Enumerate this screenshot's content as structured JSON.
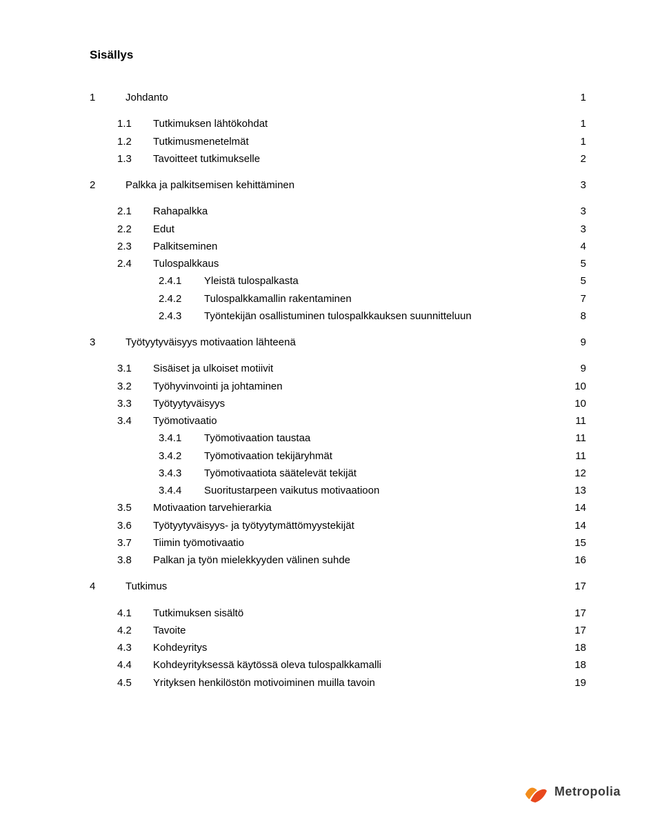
{
  "title": "Sisällys",
  "toc": [
    {
      "level": 0,
      "num": "1",
      "label": "Johdanto",
      "page": "1",
      "gap_before": "none",
      "gap_after": "md"
    },
    {
      "level": 1,
      "num": "1.1",
      "label": "Tutkimuksen lähtökohdat",
      "page": "1",
      "gap_after": "sm"
    },
    {
      "level": 1,
      "num": "1.2",
      "label": "Tutkimusmenetelmät",
      "page": "1",
      "gap_after": "sm"
    },
    {
      "level": 1,
      "num": "1.3",
      "label": "Tavoitteet tutkimukselle",
      "page": "2",
      "gap_after": "md"
    },
    {
      "level": 0,
      "num": "2",
      "label": "Palkka ja palkitsemisen kehittäminen",
      "page": "3",
      "gap_after": "md"
    },
    {
      "level": 1,
      "num": "2.1",
      "label": "Rahapalkka",
      "page": "3",
      "gap_after": "sm"
    },
    {
      "level": 1,
      "num": "2.2",
      "label": "Edut",
      "page": "3",
      "gap_after": "sm"
    },
    {
      "level": 1,
      "num": "2.3",
      "label": "Palkitseminen",
      "page": "4",
      "gap_after": "sm"
    },
    {
      "level": 1,
      "num": "2.4",
      "label": "Tulospalkkaus",
      "page": "5",
      "gap_after": "sm"
    },
    {
      "level": 2,
      "num": "2.4.1",
      "label": "Yleistä tulospalkasta",
      "page": "5",
      "gap_after": "sm"
    },
    {
      "level": 2,
      "num": "2.4.2",
      "label": "Tulospalkkamallin rakentaminen",
      "page": "7",
      "gap_after": "sm"
    },
    {
      "level": 2,
      "num": "2.4.3",
      "label": "Työntekijän osallistuminen tulospalkkauksen suunnitteluun",
      "page": "8",
      "gap_after": "md"
    },
    {
      "level": 0,
      "num": "3",
      "label": "Työtyytyväisyys motivaation lähteenä",
      "page": "9",
      "gap_after": "md"
    },
    {
      "level": 1,
      "num": "3.1",
      "label": "Sisäiset ja ulkoiset motiivit",
      "page": "9",
      "gap_after": "sm"
    },
    {
      "level": 1,
      "num": "3.2",
      "label": "Työhyvinvointi ja johtaminen",
      "page": "10",
      "gap_after": "sm"
    },
    {
      "level": 1,
      "num": "3.3",
      "label": "Työtyytyväisyys",
      "page": "10",
      "gap_after": "sm"
    },
    {
      "level": 1,
      "num": "3.4",
      "label": "Työmotivaatio",
      "page": "11",
      "gap_after": "sm"
    },
    {
      "level": 2,
      "num": "3.4.1",
      "label": "Työmotivaation taustaa",
      "page": "11",
      "gap_after": "sm"
    },
    {
      "level": 2,
      "num": "3.4.2",
      "label": "Työmotivaation tekijäryhmät",
      "page": "11",
      "gap_after": "sm"
    },
    {
      "level": 2,
      "num": "3.4.3",
      "label": "Työmotivaatiota säätelevät tekijät",
      "page": "12",
      "gap_after": "sm"
    },
    {
      "level": 2,
      "num": "3.4.4",
      "label": "Suoritustarpeen vaikutus motivaatioon",
      "page": "13",
      "gap_after": "sm"
    },
    {
      "level": 1,
      "num": "3.5",
      "label": "Motivaation tarvehierarkia",
      "page": "14",
      "gap_after": "sm"
    },
    {
      "level": 1,
      "num": "3.6",
      "label": "Työtyytyväisyys- ja työtyytymättömyystekijät",
      "page": "14",
      "gap_after": "sm"
    },
    {
      "level": 1,
      "num": "3.7",
      "label": "Tiimin työmotivaatio",
      "page": "15",
      "gap_after": "sm"
    },
    {
      "level": 1,
      "num": "3.8",
      "label": "Palkan ja työn mielekkyyden välinen suhde",
      "page": "16",
      "gap_after": "md"
    },
    {
      "level": 0,
      "num": "4",
      "label": "Tutkimus",
      "page": "17",
      "gap_after": "md"
    },
    {
      "level": 1,
      "num": "4.1",
      "label": "Tutkimuksen sisältö",
      "page": "17",
      "gap_after": "sm"
    },
    {
      "level": 1,
      "num": "4.2",
      "label": "Tavoite",
      "page": "17",
      "gap_after": "sm"
    },
    {
      "level": 1,
      "num": "4.3",
      "label": "Kohdeyritys",
      "page": "18",
      "gap_after": "sm"
    },
    {
      "level": 1,
      "num": "4.4",
      "label": "Kohdeyrityksessä käytössä oleva tulospalkkamalli",
      "page": "18",
      "gap_after": "sm"
    },
    {
      "level": 1,
      "num": "4.5",
      "label": "Yrityksen henkilöstön motivoiminen muilla tavoin",
      "page": "19",
      "gap_after": "none"
    }
  ],
  "logo": {
    "wordmark": "Metropolia",
    "accent_top": "#f28c1c",
    "accent_bottom": "#e8481d",
    "text_color": "#3b3b3b"
  }
}
